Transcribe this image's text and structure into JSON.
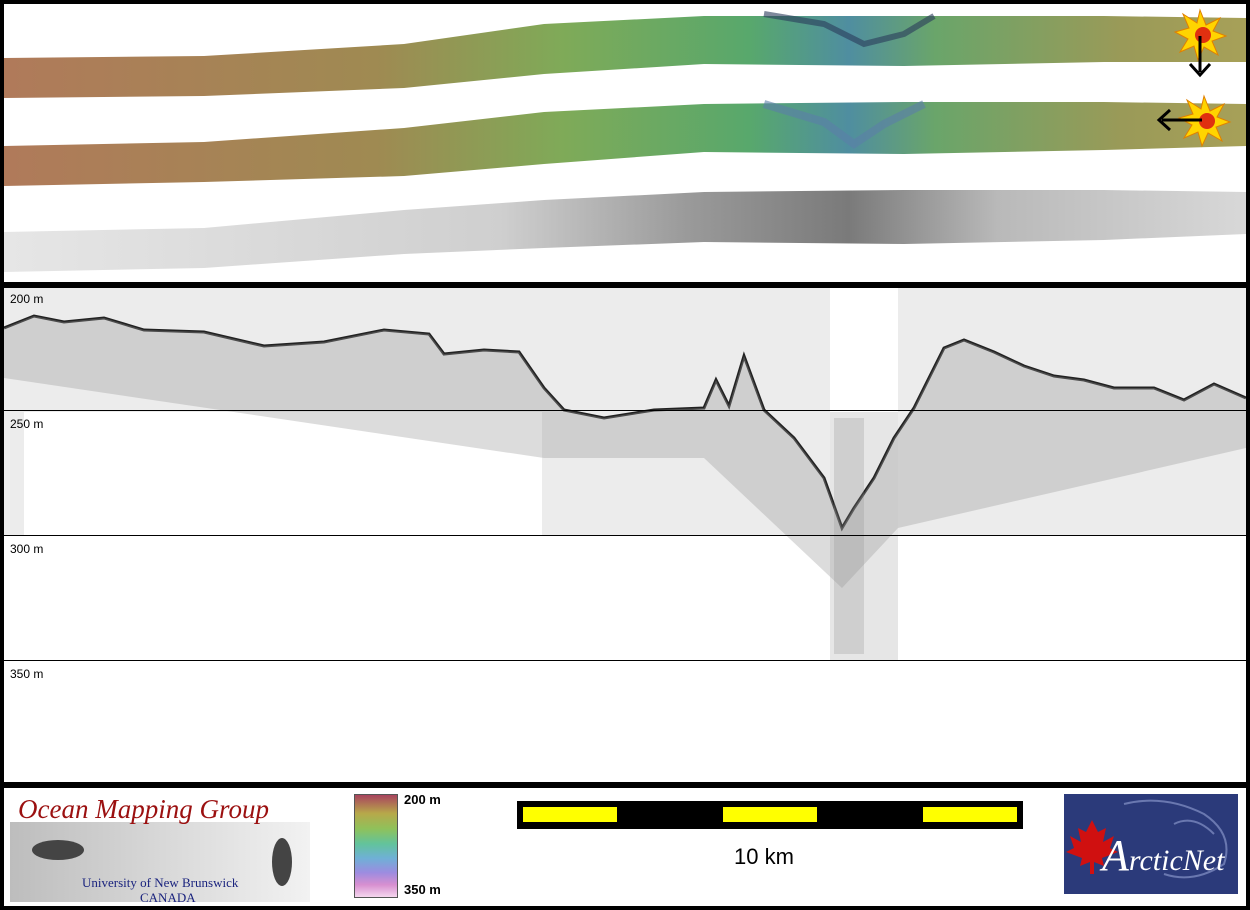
{
  "depth_axis": {
    "labels": [
      "200 m",
      "250 m",
      "300 m",
      "350 m"
    ]
  },
  "colorbar": {
    "top_label": "200 m",
    "bottom_label": "350 m"
  },
  "scalebar": {
    "label": "10 km"
  },
  "logos": {
    "omg_title": "Ocean Mapping Group",
    "omg_university": "University of New Brunswick",
    "omg_country": "CANADA",
    "arcticnet_initial": "A",
    "arcticnet_rest": "rcticNet"
  },
  "icons": {
    "sun_illumination_1": "sun-icon",
    "sun_illumination_2": "sun-icon",
    "arrow_down": "arrow-down-icon",
    "arrow_left": "arrow-left-icon",
    "maple_leaf": "maple-leaf-icon"
  },
  "colors": {
    "scalebar_fill": "#ffff00",
    "omg_title": "#9b1010",
    "arcticnet_background": "#2b3a7a",
    "maple_leaf": "#d01010"
  }
}
